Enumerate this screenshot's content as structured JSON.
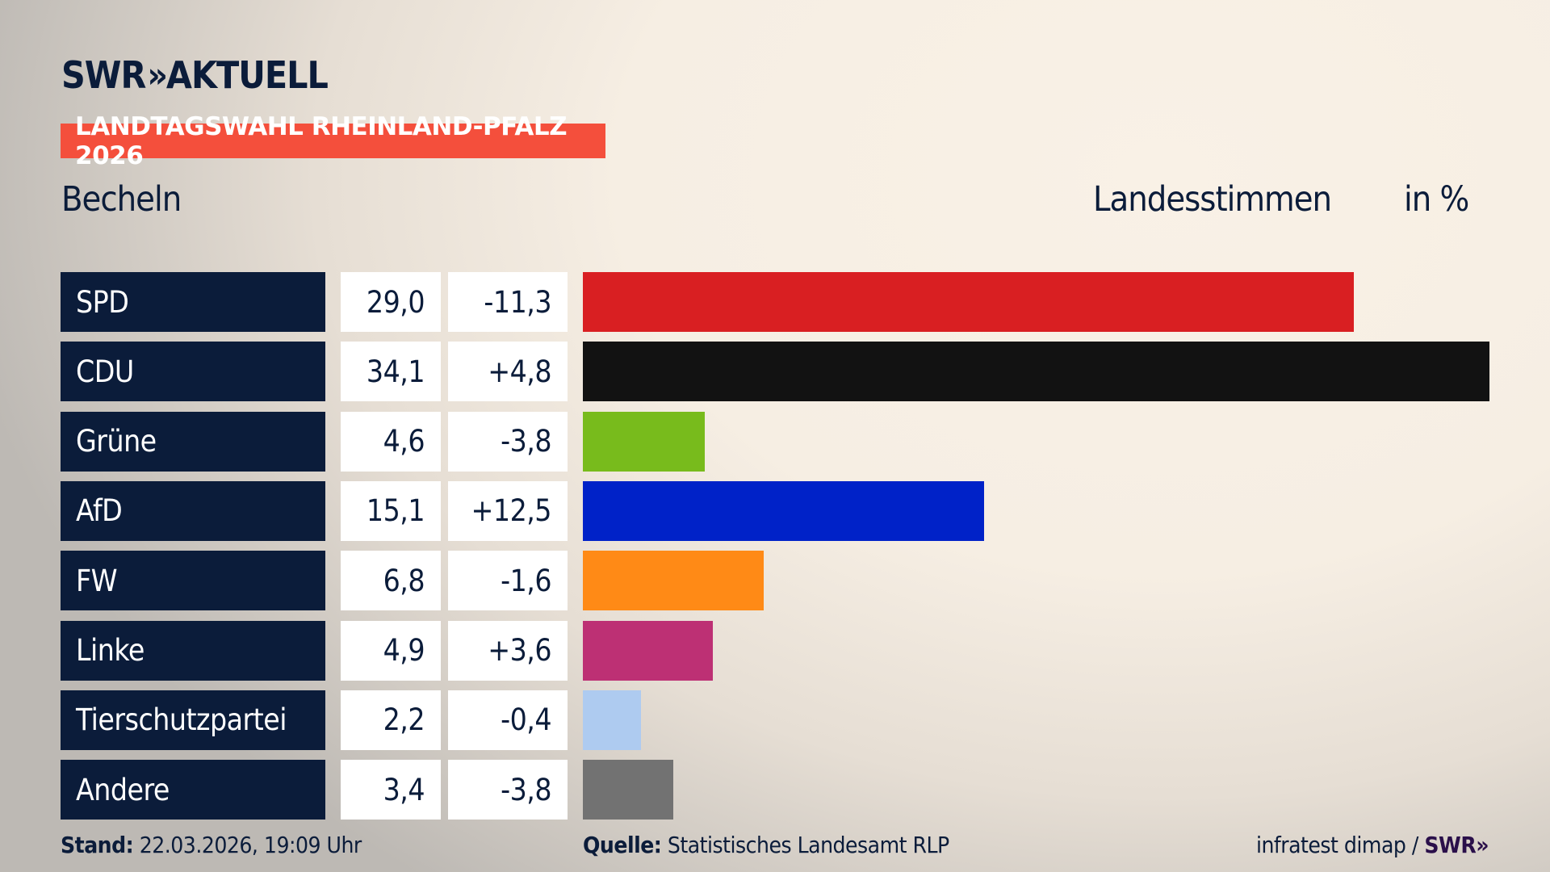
{
  "logo": {
    "text": "SWR",
    "chevrons": "»",
    "suffix": "AKTUELL"
  },
  "banner": "LANDTAGSWAHL RHEINLAND-PFALZ 2026",
  "location": "Becheln",
  "header": {
    "label": "Landesstimmen",
    "unit": "in %"
  },
  "chart_data": {
    "type": "bar",
    "orientation": "horizontal",
    "title": "Landesstimmen",
    "unit": "in %",
    "categories": [
      "SPD",
      "CDU",
      "Grüne",
      "AfD",
      "FW",
      "Linke",
      "Tierschutzpartei",
      "Andere"
    ],
    "values": [
      29.0,
      34.1,
      4.6,
      15.1,
      6.8,
      4.9,
      2.2,
      3.4
    ],
    "value_labels": [
      "29,0",
      "34,1",
      "4,6",
      "15,1",
      "6,8",
      "4,9",
      "2,2",
      "3,4"
    ],
    "change_labels": [
      "-11,3",
      "+4,8",
      "-3,8",
      "+12,5",
      "-1,6",
      "+3,6",
      "-0,4",
      "-3,8"
    ],
    "changes": [
      -11.3,
      4.8,
      -3.8,
      12.5,
      -1.6,
      3.6,
      -0.4,
      -3.8
    ],
    "colors": [
      "#d91f22",
      "#121212",
      "#78bb1c",
      "#0022c8",
      "#ff8a16",
      "#bd3074",
      "#aecbf0",
      "#727272"
    ],
    "xlim": [
      0,
      34.1
    ]
  },
  "footer": {
    "stand_label": "Stand:",
    "stand_value": "22.03.2026, 19:09 Uhr",
    "source_label": "Quelle:",
    "source_value": "Statistisches Landesamt RLP",
    "credit": "infratest dimap /",
    "credit_logo": "SWR»"
  }
}
